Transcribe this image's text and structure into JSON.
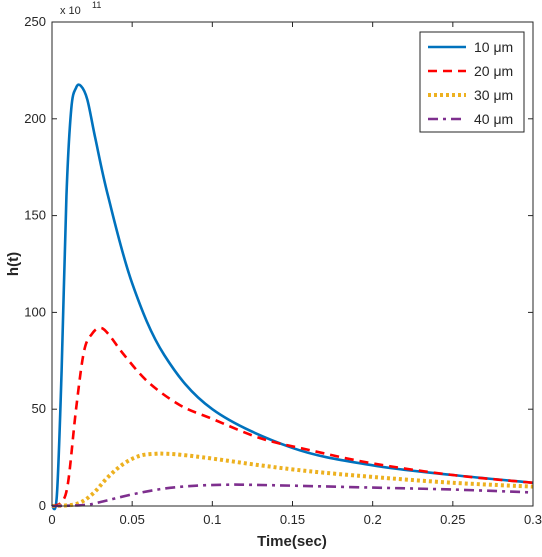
{
  "chart_data": {
    "type": "line",
    "xlabel": "Time(sec)",
    "ylabel": "h(t)",
    "y_exponent_label": {
      "base": "x 10",
      "power": "11"
    },
    "xlim": [
      0,
      0.3
    ],
    "ylim": [
      0,
      250
    ],
    "x_ticks": [
      0,
      0.05,
      0.1,
      0.15,
      0.2,
      0.25,
      0.3
    ],
    "x_tick_labels": [
      "0",
      "0.05",
      "0.1",
      "0.15",
      "0.2",
      "0.25",
      "0.3"
    ],
    "y_ticks": [
      0,
      50,
      100,
      150,
      200,
      250
    ],
    "y_tick_labels": [
      "0",
      "50",
      "100",
      "150",
      "200",
      "250"
    ],
    "grid": false,
    "legend_position": "top-right",
    "series": [
      {
        "name": "10 μm",
        "color": "#0072BD",
        "style": "solid",
        "x": [
          0,
          0.003,
          0.006,
          0.009,
          0.012,
          0.015,
          0.018,
          0.022,
          0.027,
          0.035,
          0.05,
          0.07,
          0.1,
          0.15,
          0.2,
          0.25,
          0.3
        ],
        "y": [
          0,
          5,
          70,
          160,
          205,
          216,
          217,
          210,
          190,
          160,
          115,
          78,
          50,
          30,
          21,
          16,
          12
        ]
      },
      {
        "name": "20 μm",
        "color": "#FF0000",
        "style": "dashed",
        "x": [
          0,
          0.006,
          0.01,
          0.015,
          0.02,
          0.025,
          0.03,
          0.035,
          0.045,
          0.06,
          0.08,
          0.1,
          0.13,
          0.16,
          0.2,
          0.25,
          0.3
        ],
        "y": [
          0,
          2,
          12,
          50,
          80,
          89,
          92,
          89,
          78,
          64,
          52,
          45,
          35,
          29,
          22,
          16,
          12
        ]
      },
      {
        "name": "30 μm",
        "color": "#EDB120",
        "style": "dotted",
        "x": [
          0,
          0.015,
          0.025,
          0.035,
          0.045,
          0.055,
          0.065,
          0.07,
          0.08,
          0.1,
          0.13,
          0.16,
          0.2,
          0.25,
          0.3
        ],
        "y": [
          0,
          1,
          6,
          15,
          22,
          26,
          27,
          27,
          26.5,
          24.5,
          21,
          18,
          15,
          12,
          10
        ]
      },
      {
        "name": "40 μm",
        "color": "#7E2F8E",
        "style": "dashdot",
        "x": [
          0,
          0.02,
          0.03,
          0.05,
          0.07,
          0.09,
          0.11,
          0.12,
          0.15,
          0.2,
          0.25,
          0.3
        ],
        "y": [
          0,
          0.5,
          2,
          6,
          9,
          10.5,
          11,
          11,
          10.5,
          9.5,
          8.5,
          7
        ]
      }
    ]
  }
}
